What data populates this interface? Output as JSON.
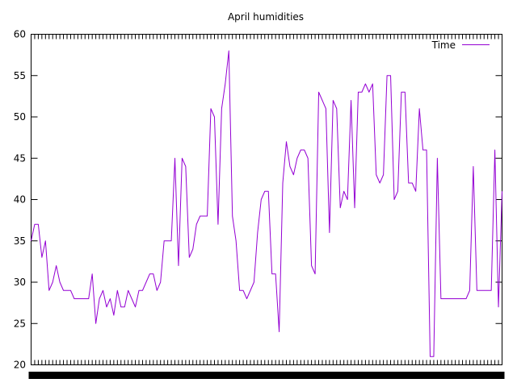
{
  "chart_data": {
    "type": "line",
    "title": "April humidities",
    "xlabel": "",
    "ylabel": "",
    "ylim": [
      20,
      60
    ],
    "yticks": [
      20,
      25,
      30,
      35,
      40,
      45,
      50,
      55,
      60
    ],
    "grid": false,
    "legend_position": "top-right",
    "series": [
      {
        "name": "Time",
        "color": "#9400d3",
        "values": [
          35,
          37,
          37,
          33,
          35,
          29,
          30,
          32,
          30,
          29,
          29,
          29,
          28,
          28,
          28,
          28,
          28,
          31,
          25,
          28,
          29,
          27,
          28,
          26,
          29,
          27,
          27,
          29,
          28,
          27,
          29,
          29,
          30,
          31,
          31,
          29,
          30,
          35,
          35,
          35,
          45,
          32,
          45,
          44,
          33,
          34,
          37,
          38,
          38,
          38,
          51,
          50,
          37,
          51,
          54,
          58,
          38,
          35,
          29,
          29,
          28,
          29,
          30,
          36,
          40,
          41,
          41,
          31,
          31,
          24,
          42,
          47,
          44,
          43,
          45,
          46,
          46,
          45,
          32,
          31,
          53,
          52,
          51,
          36,
          52,
          51,
          39,
          41,
          40,
          52,
          39,
          53,
          53,
          54,
          53,
          54,
          43,
          42,
          43,
          55,
          55,
          40,
          41,
          53,
          53,
          42,
          42,
          41,
          51,
          46,
          46,
          21,
          21,
          45,
          28,
          28,
          28,
          28,
          28,
          28,
          28,
          28,
          29,
          44,
          29,
          29,
          29,
          29,
          29,
          46,
          27,
          41
        ]
      }
    ]
  }
}
